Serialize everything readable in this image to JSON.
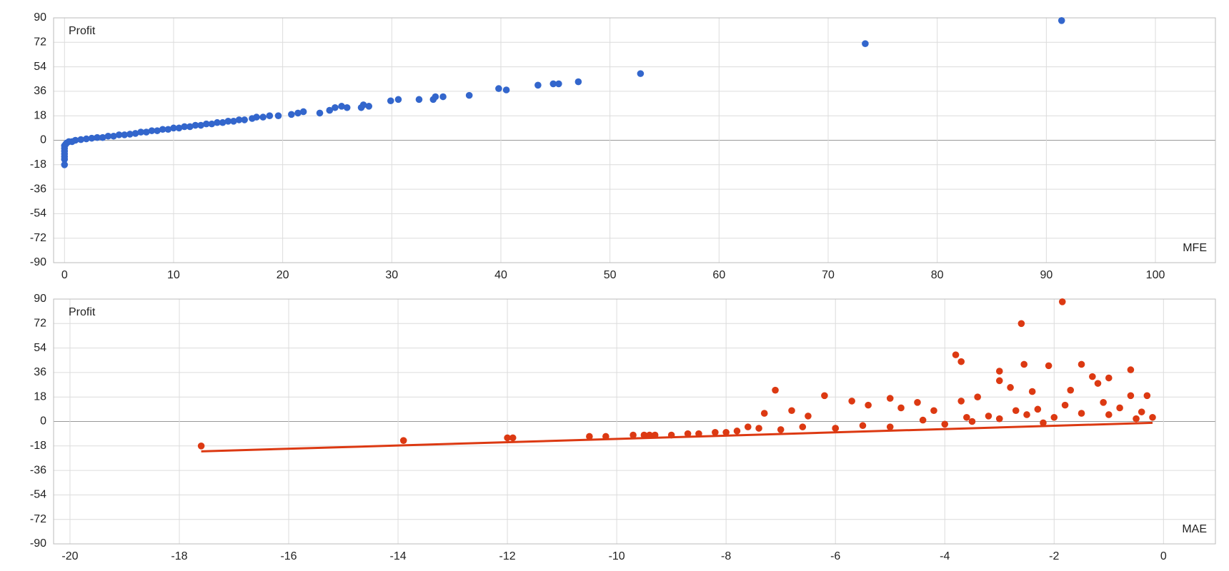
{
  "chart_data": [
    {
      "type": "scatter",
      "y_label": "Profit",
      "x_label": "MFE",
      "color": "#3366cc",
      "grid": true,
      "xlim": [
        -1,
        105.5
      ],
      "ylim": [
        -90,
        90
      ],
      "xticks": [
        0,
        10,
        20,
        30,
        40,
        50,
        60,
        70,
        80,
        90,
        100
      ],
      "yticks": [
        -90,
        -72,
        -54,
        -36,
        -18,
        0,
        18,
        36,
        54,
        72,
        90
      ],
      "x": [
        91.4,
        73.4,
        52.8,
        47.1,
        45.3,
        44.8,
        43.4,
        40.5,
        39.8,
        37.1,
        34.7,
        34.0,
        33.8,
        32.5,
        30.6,
        29.9,
        27.9,
        27.4,
        27.2,
        25.9,
        25.4,
        24.8,
        24.3,
        23.4,
        21.9,
        21.4,
        20.8,
        19.6,
        18.8,
        18.2,
        17.6,
        17.2,
        16.5,
        16.0,
        15.5,
        15.0,
        14.5,
        14.0,
        13.5,
        13.0,
        12.5,
        12.0,
        11.5,
        11.0,
        10.5,
        10.0,
        9.5,
        9.0,
        8.5,
        8.0,
        7.5,
        7.0,
        6.5,
        6.0,
        5.5,
        5.0,
        4.5,
        4.0,
        3.5,
        3.0,
        2.5,
        2.0,
        1.5,
        1.0,
        0.7,
        0.4,
        0.2,
        0.1,
        0.0,
        0.0,
        0.0,
        0.0,
        0.0,
        0.0,
        0.0
      ],
      "values": [
        88,
        71,
        49,
        43,
        41.5,
        41.5,
        40.5,
        37,
        38,
        33,
        32,
        32,
        30,
        30,
        30,
        29,
        25,
        26,
        24,
        24,
        25,
        24,
        22,
        20,
        21,
        20,
        19,
        18,
        18,
        17,
        17,
        16,
        15,
        15,
        14,
        14,
        13,
        13,
        12,
        12,
        11,
        11,
        10,
        10,
        9,
        9,
        8,
        8,
        7,
        7,
        6,
        6,
        5,
        4.5,
        4,
        4,
        3,
        3,
        2,
        2,
        1.5,
        1,
        0.5,
        0,
        -1,
        -1,
        -2,
        -3,
        -4,
        -6,
        -8,
        -10,
        -12,
        -14,
        -18
      ]
    },
    {
      "type": "scatter",
      "y_label": "Profit",
      "x_label": "MAE",
      "color": "#dc3912",
      "grid": true,
      "xlim": [
        -20.3,
        0.95
      ],
      "ylim": [
        -90,
        90
      ],
      "xticks": [
        -20,
        -18,
        -16,
        -14,
        -12,
        -10,
        -8,
        -6,
        -4,
        -2,
        0
      ],
      "yticks": [
        -90,
        -72,
        -54,
        -36,
        -18,
        0,
        18,
        36,
        54,
        72,
        90
      ],
      "trendline": {
        "x": [
          -17.6,
          -0.2
        ],
        "values": [
          -22,
          -1
        ]
      },
      "x": [
        -17.6,
        -13.9,
        -12.0,
        -11.9,
        -10.5,
        -10.2,
        -9.7,
        -9.5,
        -9.4,
        -9.3,
        -9.0,
        -8.7,
        -8.5,
        -8.2,
        -8.0,
        -7.8,
        -7.6,
        -7.4,
        -7.3,
        -7.1,
        -7.0,
        -6.8,
        -6.5,
        -6.2,
        -6.0,
        -5.7,
        -5.4,
        -5.0,
        -4.8,
        -4.5,
        -4.2,
        -3.8,
        -3.7,
        -3.7,
        -3.4,
        -3.0,
        -3.0,
        -2.8,
        -2.6,
        -2.55,
        -2.4,
        -2.2,
        -2.1,
        -1.85,
        -1.7,
        -1.5,
        -1.3,
        -1.2,
        -1.0,
        -0.6,
        -0.6,
        -0.3,
        -0.2,
        -0.5,
        -1.0,
        -1.5,
        -2.0,
        -2.5,
        -3.0,
        -3.5,
        -4.0,
        -5.0,
        -6.0,
        -0.8,
        -1.8,
        -2.7,
        -3.2,
        -4.4,
        -5.5,
        -6.6,
        -0.4,
        -1.1,
        -2.3,
        -3.6
      ],
      "values": [
        -18,
        -14,
        -12,
        -12,
        -11,
        -11,
        -10,
        -10,
        -10,
        -10,
        -10,
        -9,
        -9,
        -8,
        -8,
        -7,
        -4,
        -5,
        6,
        23,
        -6,
        8,
        4,
        19,
        -5,
        15,
        12,
        17,
        10,
        14,
        8,
        49,
        44,
        15,
        18,
        37,
        30,
        25,
        72,
        42,
        22,
        -1,
        41,
        88,
        23,
        42,
        33,
        28,
        32,
        38,
        19,
        19,
        3,
        2,
        5,
        6,
        3,
        5,
        2,
        0,
        -2,
        -4,
        -5,
        10,
        12,
        8,
        4,
        1,
        -3,
        -4,
        7,
        14,
        9,
        3
      ]
    }
  ]
}
